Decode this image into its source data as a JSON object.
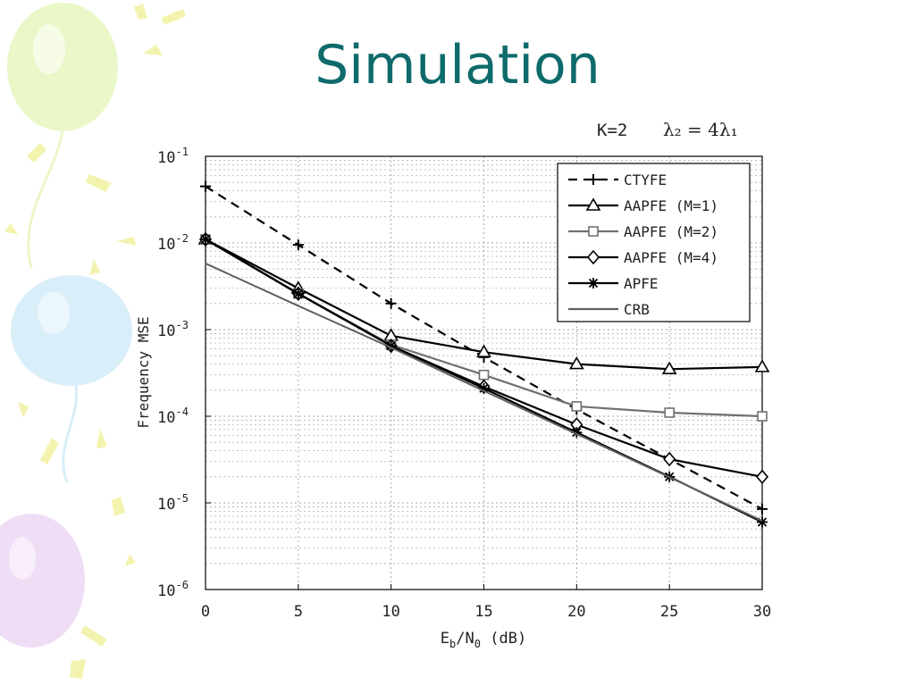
{
  "slide": {
    "title": "Simulation"
  },
  "colors": {
    "title": "#0f6b6b",
    "balloon_green": "#eaf7c8",
    "balloon_blue": "#d8eef9",
    "balloon_purple": "#efdcf5",
    "confetti": "#f3f3b0"
  },
  "chart_data": {
    "type": "line",
    "annotation": {
      "left": "K=2",
      "right": "λ₂ = 4λ₁"
    },
    "xlabel": {
      "main": "E",
      "sub1": "b",
      "mid": "/N",
      "sub2": "0",
      "tail": " (dB)"
    },
    "ylabel": "Frequency MSE",
    "x_ticks": [
      "0",
      "5",
      "10",
      "15",
      "20",
      "25",
      "30"
    ],
    "y_ticks": [
      {
        "base": "10",
        "exp": "-1"
      },
      {
        "base": "10",
        "exp": "-2"
      },
      {
        "base": "10",
        "exp": "-3"
      },
      {
        "base": "10",
        "exp": "-4"
      },
      {
        "base": "10",
        "exp": "-5"
      },
      {
        "base": "10",
        "exp": "-6"
      }
    ],
    "xlim": [
      0,
      30
    ],
    "ylim": [
      1e-06,
      0.1
    ],
    "yscale": "log",
    "grid": true,
    "legend_position": "top-right",
    "x": [
      0,
      5,
      10,
      15,
      20,
      25,
      30
    ],
    "series": [
      {
        "name": "CTYFE",
        "style": "dashed",
        "marker": "plus",
        "color": "#000000",
        "values": [
          0.045,
          0.0095,
          0.002,
          0.00048,
          0.00012,
          3.2e-05,
          8.5e-06
        ]
      },
      {
        "name": "AAPFE (M=1)",
        "style": "solid",
        "marker": "triangle",
        "color": "#000000",
        "values": [
          0.011,
          0.003,
          0.00085,
          0.00055,
          0.0004,
          0.00035,
          0.00037
        ]
      },
      {
        "name": "AAPFE (M=2)",
        "style": "solid",
        "marker": "square",
        "color": "#707070",
        "values": [
          0.011,
          0.0026,
          0.00067,
          0.0003,
          0.00013,
          0.00011,
          0.0001
        ]
      },
      {
        "name": "AAPFE (M=4)",
        "style": "solid",
        "marker": "diamond",
        "color": "#000000",
        "values": [
          0.011,
          0.0026,
          0.00065,
          0.00022,
          8e-05,
          3.2e-05,
          2e-05
        ]
      },
      {
        "name": "APFE",
        "style": "solid",
        "marker": "star",
        "color": "#000000",
        "values": [
          0.011,
          0.0026,
          0.00065,
          0.00021,
          6.5e-05,
          2e-05,
          6e-06
        ]
      },
      {
        "name": "CRB",
        "style": "solid",
        "marker": "none",
        "color": "#606060",
        "values": [
          0.0058,
          0.00188,
          0.00062,
          0.000196,
          6.25e-05,
          1.98e-05,
          6.2e-06
        ]
      }
    ]
  }
}
